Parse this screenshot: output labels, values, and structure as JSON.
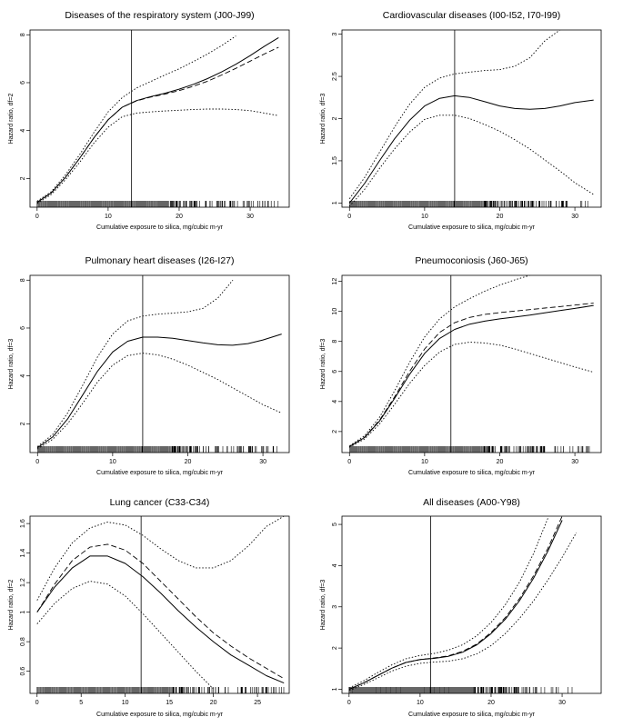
{
  "chart_data": [
    {
      "type": "line",
      "title": "Diseases of the respiratory system (J00-J99)",
      "xlabel": "Cumulative exposure to silica, mg/cubic m-yr",
      "ylabel": "Hazard ratio, df=2",
      "xlim": [
        -1,
        35.5
      ],
      "ylim": [
        0.8,
        8.2
      ],
      "xticks": [
        0,
        10,
        20,
        30
      ],
      "yticks": [
        2,
        4,
        6,
        8
      ],
      "vline": 13.3,
      "x": [
        0,
        2,
        4,
        6,
        8,
        10,
        12,
        14,
        16,
        18,
        20,
        22,
        24,
        26,
        28,
        30,
        32,
        34
      ],
      "series": [
        {
          "style": "solid",
          "values": [
            1.0,
            1.4,
            2.05,
            2.85,
            3.7,
            4.45,
            4.98,
            5.25,
            5.42,
            5.56,
            5.73,
            5.93,
            6.17,
            6.45,
            6.77,
            7.13,
            7.52,
            7.88
          ]
        },
        {
          "style": "dashed",
          "values": [
            1.0,
            1.4,
            2.05,
            2.85,
            3.7,
            4.45,
            4.98,
            5.24,
            5.4,
            5.52,
            5.67,
            5.85,
            6.06,
            6.32,
            6.6,
            6.9,
            7.2,
            7.48
          ]
        },
        {
          "style": "dotted",
          "values": [
            1.05,
            1.45,
            2.15,
            3.0,
            3.92,
            4.78,
            5.38,
            5.78,
            6.05,
            6.32,
            6.58,
            6.88,
            7.2,
            7.55,
            7.95,
            null,
            null,
            null
          ]
        },
        {
          "style": "dotted",
          "values": [
            0.95,
            1.33,
            1.95,
            2.68,
            3.48,
            4.14,
            4.58,
            4.73,
            4.78,
            4.82,
            4.85,
            4.88,
            4.9,
            4.9,
            4.88,
            4.83,
            4.73,
            4.62
          ]
        }
      ]
    },
    {
      "type": "line",
      "title": "Cardiovascular diseases (I00-I52, I70-I99)",
      "xlabel": "Cumulative exposure to silica, mg/cubic m-yr",
      "ylabel": "Hazard ratio, df=3",
      "xlim": [
        -1,
        33.5
      ],
      "ylim": [
        0.95,
        3.05
      ],
      "xticks": [
        0,
        10,
        20,
        30
      ],
      "yticks": [
        1.0,
        1.5,
        2.0,
        2.5,
        3.0
      ],
      "vline": 14,
      "x": [
        0,
        2,
        4,
        6,
        8,
        10,
        12,
        14,
        16,
        18,
        20,
        22,
        24,
        26,
        28,
        30,
        32.5
      ],
      "series": [
        {
          "style": "solid",
          "values": [
            1.0,
            1.23,
            1.5,
            1.76,
            1.98,
            2.15,
            2.24,
            2.27,
            2.25,
            2.2,
            2.15,
            2.12,
            2.11,
            2.12,
            2.15,
            2.19,
            2.22
          ]
        },
        {
          "style": "dotted",
          "values": [
            1.05,
            1.3,
            1.6,
            1.9,
            2.17,
            2.37,
            2.48,
            2.53,
            2.55,
            2.57,
            2.58,
            2.62,
            2.72,
            2.92,
            3.05,
            null,
            null
          ]
        },
        {
          "style": "dotted",
          "values": [
            0.96,
            1.16,
            1.41,
            1.64,
            1.84,
            1.99,
            2.04,
            2.04,
            2.0,
            1.93,
            1.85,
            1.75,
            1.64,
            1.51,
            1.38,
            1.24,
            1.1
          ]
        }
      ]
    },
    {
      "type": "line",
      "title": "Pulmonary heart diseases (I26-I27)",
      "xlabel": "Cumulative exposure to silica, mg/cubic m-yr",
      "ylabel": "Hazard ratio, df=3",
      "xlim": [
        -1,
        33.5
      ],
      "ylim": [
        0.8,
        8.2
      ],
      "xticks": [
        0,
        10,
        20,
        30
      ],
      "yticks": [
        2,
        4,
        6,
        8
      ],
      "vline": 14,
      "x": [
        0,
        2,
        4,
        6,
        8,
        10,
        12,
        14,
        16,
        18,
        20,
        22,
        24,
        26,
        28,
        30,
        32.5
      ],
      "series": [
        {
          "style": "solid",
          "values": [
            1.0,
            1.45,
            2.2,
            3.2,
            4.2,
            5.0,
            5.45,
            5.62,
            5.62,
            5.57,
            5.48,
            5.38,
            5.3,
            5.28,
            5.35,
            5.5,
            5.75
          ]
        },
        {
          "style": "dotted",
          "values": [
            1.05,
            1.55,
            2.45,
            3.6,
            4.8,
            5.75,
            6.3,
            6.5,
            6.58,
            6.62,
            6.68,
            6.82,
            7.25,
            8.0,
            null,
            null,
            null
          ]
        },
        {
          "style": "dotted",
          "values": [
            0.95,
            1.35,
            2.0,
            2.85,
            3.75,
            4.45,
            4.85,
            4.95,
            4.88,
            4.7,
            4.45,
            4.15,
            3.85,
            3.5,
            3.15,
            2.8,
            2.45
          ]
        }
      ]
    },
    {
      "type": "line",
      "title": "Pneumoconiosis (J60-J65)",
      "xlabel": "Cumulative exposure to silica, mg/cubic m-yr",
      "ylabel": "Hazard ratio, df=3",
      "xlim": [
        -1,
        33.5
      ],
      "ylim": [
        0.6,
        12.4
      ],
      "xticks": [
        0,
        10,
        20,
        30
      ],
      "yticks": [
        2,
        4,
        6,
        8,
        10,
        12
      ],
      "vline": 13.5,
      "x": [
        0,
        2,
        4,
        6,
        8,
        10,
        12,
        14,
        16,
        18,
        20,
        22,
        24,
        26,
        28,
        30,
        32.5
      ],
      "series": [
        {
          "style": "solid",
          "values": [
            1.0,
            1.6,
            2.7,
            4.2,
            5.8,
            7.2,
            8.2,
            8.8,
            9.15,
            9.35,
            9.5,
            9.62,
            9.75,
            9.9,
            10.05,
            10.2,
            10.4
          ]
        },
        {
          "style": "dashed",
          "values": [
            1.0,
            1.62,
            2.75,
            4.3,
            6.0,
            7.5,
            8.6,
            9.25,
            9.6,
            9.8,
            9.92,
            10.02,
            10.12,
            10.22,
            10.32,
            10.42,
            10.55
          ]
        },
        {
          "style": "dotted",
          "values": [
            1.05,
            1.72,
            2.95,
            4.7,
            6.6,
            8.3,
            9.5,
            10.3,
            10.85,
            11.35,
            11.75,
            12.1,
            12.4,
            null,
            null,
            null,
            null
          ]
        },
        {
          "style": "dotted",
          "values": [
            0.95,
            1.5,
            2.5,
            3.8,
            5.2,
            6.4,
            7.3,
            7.8,
            7.95,
            7.9,
            7.75,
            7.5,
            7.2,
            6.9,
            6.6,
            6.3,
            5.95
          ]
        }
      ]
    },
    {
      "type": "line",
      "title": "Lung cancer (C33-C34)",
      "xlabel": "Cumulative exposure to silica, mg/cubic m-yr",
      "ylabel": "Hazard ratio, df=2",
      "xlim": [
        -0.8,
        28.6
      ],
      "ylim": [
        0.45,
        1.65
      ],
      "xticks": [
        0,
        5,
        10,
        15,
        20,
        25
      ],
      "yticks": [
        0.6,
        0.8,
        1.0,
        1.2,
        1.4,
        1.6
      ],
      "vline": 11.8,
      "x": [
        0,
        2,
        4,
        6,
        8,
        10,
        12,
        14,
        16,
        18,
        20,
        22,
        24,
        26,
        28
      ],
      "series": [
        {
          "style": "solid",
          "values": [
            1.0,
            1.17,
            1.3,
            1.38,
            1.38,
            1.33,
            1.24,
            1.13,
            1.01,
            0.9,
            0.8,
            0.71,
            0.64,
            0.57,
            0.52
          ]
        },
        {
          "style": "dashed",
          "values": [
            1.0,
            1.19,
            1.35,
            1.44,
            1.46,
            1.42,
            1.33,
            1.21,
            1.09,
            0.97,
            0.86,
            0.77,
            0.69,
            0.62,
            0.55
          ]
        },
        {
          "style": "dotted",
          "values": [
            1.08,
            1.3,
            1.47,
            1.57,
            1.61,
            1.59,
            1.52,
            1.43,
            1.35,
            1.3,
            1.3,
            1.35,
            1.45,
            1.58,
            1.65
          ]
        },
        {
          "style": "dotted",
          "values": [
            0.92,
            1.06,
            1.16,
            1.21,
            1.19,
            1.11,
            0.99,
            0.86,
            0.73,
            0.6,
            0.48,
            null,
            null,
            null,
            null
          ]
        }
      ]
    },
    {
      "type": "line",
      "title": "All diseases (A00-Y98)",
      "xlabel": "Cumulative exposure to silica, mg/cubic m-yr",
      "ylabel": "Hazard ratio, df=3",
      "xlim": [
        -1,
        35.5
      ],
      "ylim": [
        0.9,
        5.2
      ],
      "xticks": [
        0,
        10,
        20,
        30
      ],
      "yticks": [
        1,
        2,
        3,
        4,
        5
      ],
      "vline": 11.5,
      "x": [
        0,
        2,
        4,
        6,
        8,
        10,
        12,
        14,
        16,
        18,
        20,
        22,
        24,
        26,
        28,
        30,
        32
      ],
      "series": [
        {
          "style": "solid",
          "values": [
            1.0,
            1.15,
            1.33,
            1.51,
            1.65,
            1.72,
            1.75,
            1.8,
            1.9,
            2.08,
            2.35,
            2.7,
            3.15,
            3.7,
            4.35,
            5.1,
            null
          ]
        },
        {
          "style": "dashed",
          "values": [
            1.0,
            1.15,
            1.33,
            1.51,
            1.65,
            1.72,
            1.76,
            1.81,
            1.92,
            2.1,
            2.38,
            2.74,
            3.2,
            3.76,
            4.42,
            5.2,
            null
          ]
        },
        {
          "style": "dotted",
          "values": [
            1.03,
            1.2,
            1.4,
            1.59,
            1.74,
            1.82,
            1.87,
            1.95,
            2.08,
            2.3,
            2.62,
            3.05,
            3.6,
            4.3,
            5.15,
            null,
            null
          ]
        },
        {
          "style": "dotted",
          "values": [
            0.97,
            1.11,
            1.27,
            1.44,
            1.56,
            1.63,
            1.66,
            1.68,
            1.74,
            1.86,
            2.06,
            2.35,
            2.72,
            3.15,
            3.65,
            4.2,
            4.8
          ]
        }
      ]
    }
  ]
}
